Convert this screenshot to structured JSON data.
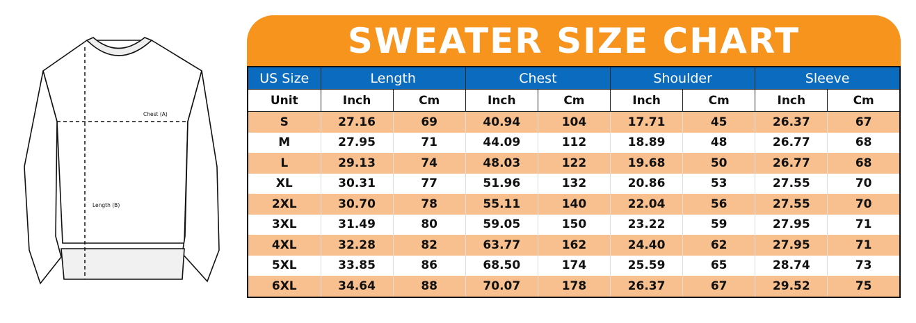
{
  "diagram": {
    "chest_label": "Chest (A)",
    "length_label": "Length (B)"
  },
  "title": "SWEATER SIZE CHART",
  "colors": {
    "header": "#f7941d",
    "group_header": "#0b6bbf",
    "stripe": "#f9c08f"
  },
  "groups": [
    "US Size",
    "Length",
    "Chest",
    "Shoulder",
    "Sleeve"
  ],
  "units": [
    "Unit",
    "Inch",
    "Cm",
    "Inch",
    "Cm",
    "Inch",
    "Cm",
    "Inch",
    "Cm"
  ],
  "rows": [
    [
      "S",
      "27.16",
      "69",
      "40.94",
      "104",
      "17.71",
      "45",
      "26.37",
      "67"
    ],
    [
      "M",
      "27.95",
      "71",
      "44.09",
      "112",
      "18.89",
      "48",
      "26.77",
      "68"
    ],
    [
      "L",
      "29.13",
      "74",
      "48.03",
      "122",
      "19.68",
      "50",
      "26.77",
      "68"
    ],
    [
      "XL",
      "30.31",
      "77",
      "51.96",
      "132",
      "20.86",
      "53",
      "27.55",
      "70"
    ],
    [
      "2XL",
      "30.70",
      "78",
      "55.11",
      "140",
      "22.04",
      "56",
      "27.55",
      "70"
    ],
    [
      "3XL",
      "31.49",
      "80",
      "59.05",
      "150",
      "23.22",
      "59",
      "27.95",
      "71"
    ],
    [
      "4XL",
      "32.28",
      "82",
      "63.77",
      "162",
      "24.40",
      "62",
      "27.95",
      "71"
    ],
    [
      "5XL",
      "33.85",
      "86",
      "68.50",
      "174",
      "25.59",
      "65",
      "28.74",
      "73"
    ],
    [
      "6XL",
      "34.64",
      "88",
      "70.07",
      "178",
      "26.37",
      "67",
      "29.52",
      "75"
    ]
  ]
}
